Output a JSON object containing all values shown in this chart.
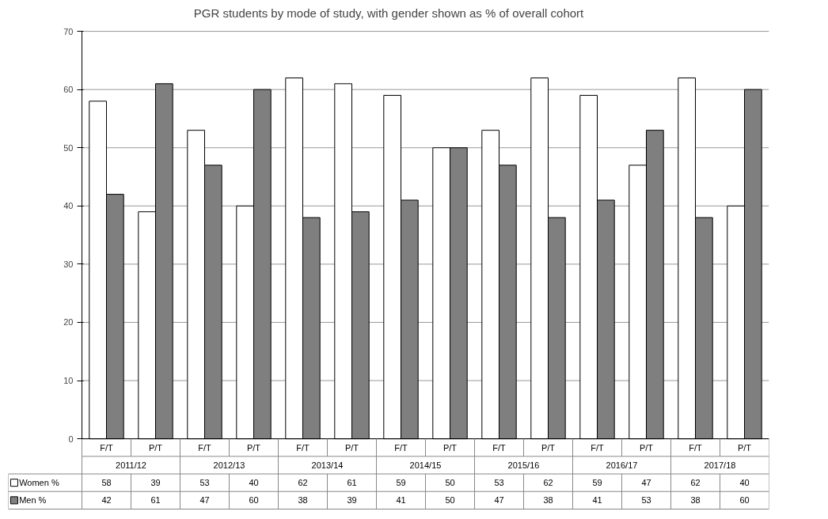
{
  "chart_data": {
    "type": "bar",
    "title": "PGR students by mode of study, with gender shown as % of overall cohort",
    "categories": [
      "F/T",
      "P/T",
      "F/T",
      "P/T",
      "F/T",
      "P/T",
      "F/T",
      "P/T",
      "F/T",
      "P/T",
      "F/T",
      "P/T",
      "F/T",
      "P/T"
    ],
    "series": [
      {
        "name": "Women %",
        "color": "#ffffff",
        "values": [
          58,
          39,
          53,
          40,
          62,
          61,
          59,
          50,
          53,
          62,
          59,
          47,
          62,
          40
        ]
      },
      {
        "name": "Men %",
        "color": "#7f7f7f",
        "values": [
          42,
          61,
          47,
          60,
          38,
          39,
          41,
          50,
          47,
          38,
          41,
          53,
          38,
          60
        ]
      }
    ],
    "annotations": [
      "2011/12",
      "2012/13",
      "2013/14",
      "2014/15",
      "2015/16",
      "2016/17",
      "2017/18"
    ],
    "ylim": [
      0,
      70
    ],
    "yticks": [
      0,
      10,
      20,
      30,
      40,
      50,
      60,
      70
    ],
    "grid": "y",
    "data_labels": true,
    "legend": "bottom left"
  }
}
